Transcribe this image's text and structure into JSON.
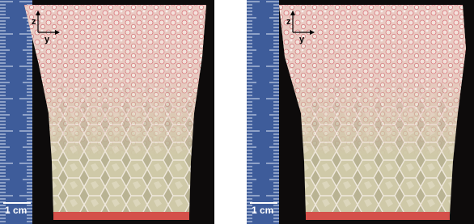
{
  "panels": [
    {
      "axis_labels": {
        "z": "z",
        "y": "y"
      },
      "scale_label": "1 cm"
    },
    {
      "axis_labels": {
        "z": "z",
        "y": "y"
      },
      "scale_label": "1 cm"
    }
  ]
}
